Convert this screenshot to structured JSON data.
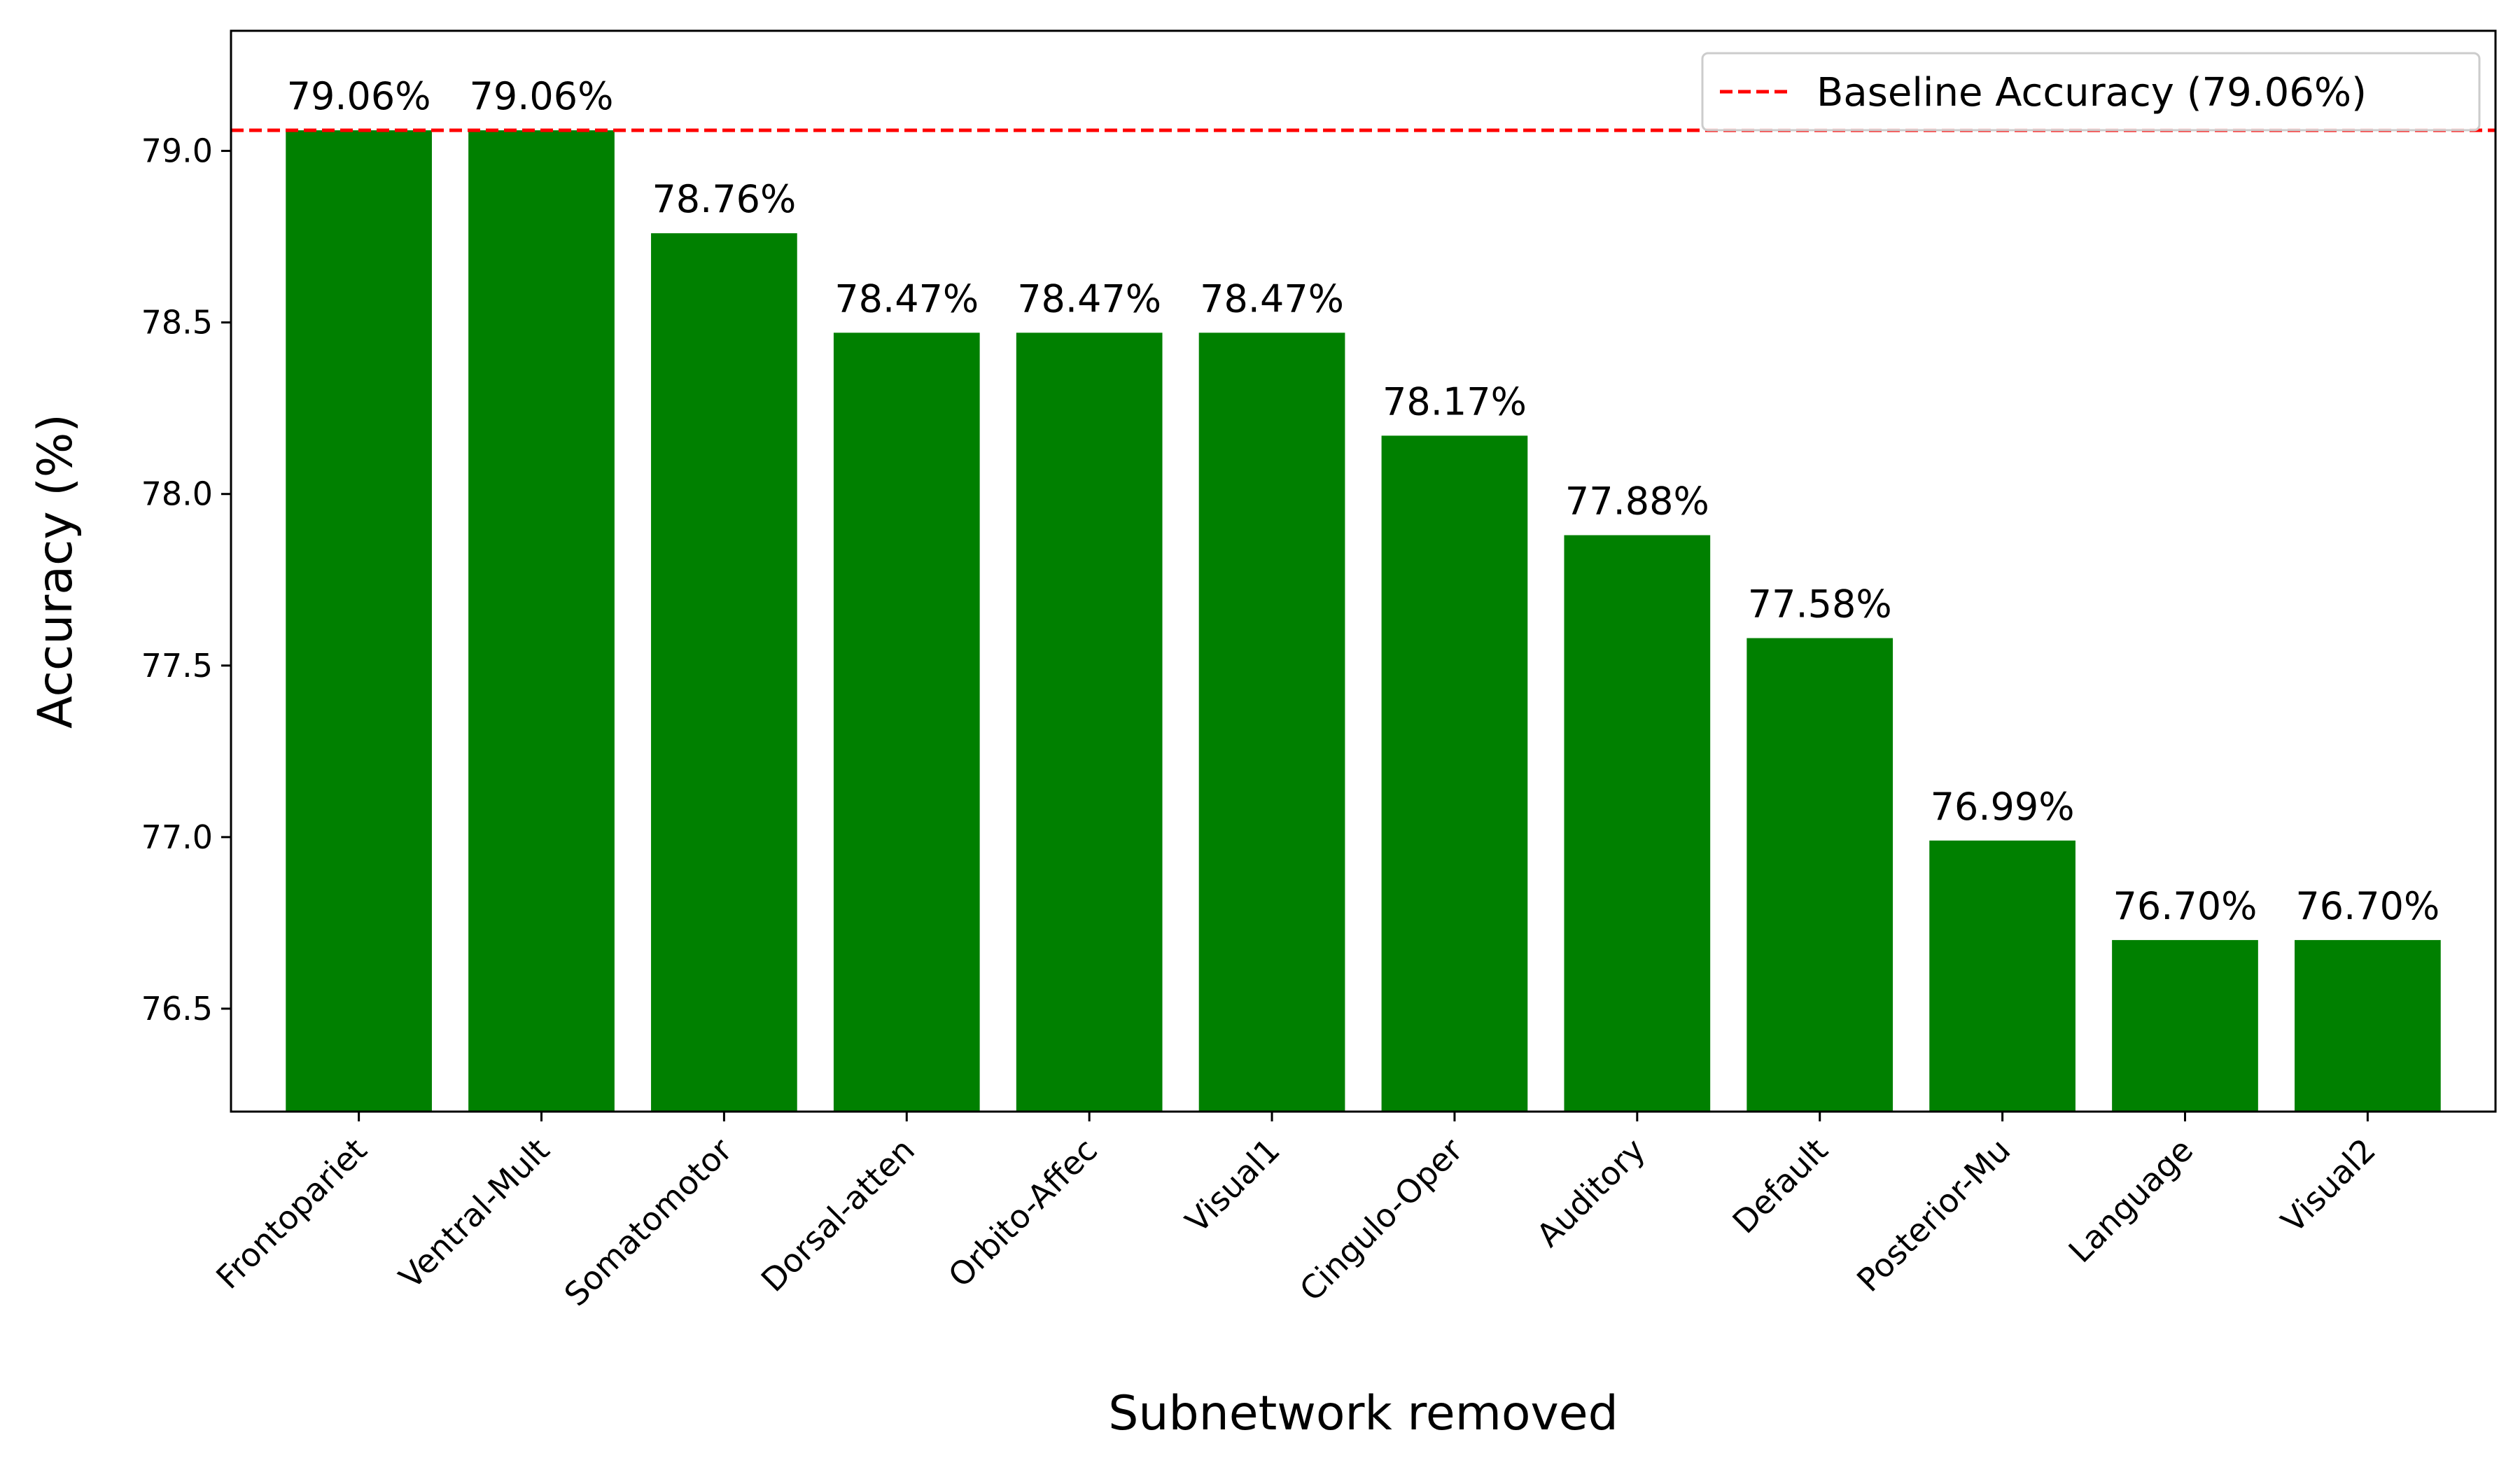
{
  "chart_data": {
    "type": "bar",
    "xlabel": "Subnetwork removed",
    "ylabel": "Accuracy (%)",
    "ylim": [
      76.2,
      79.35
    ],
    "yticks": [
      76.5,
      77.0,
      77.5,
      78.0,
      78.5,
      79.0
    ],
    "ytick_labels": [
      "76.5",
      "77.0",
      "77.5",
      "78.0",
      "78.5",
      "79.0"
    ],
    "categories": [
      "Frontopariet",
      "Ventral-Mult",
      "Somatomotor",
      "Dorsal-atten",
      "Orbito-Affec",
      "Visual1",
      "Cingulo-Oper",
      "Auditory",
      "Default",
      "Posterior-Mu",
      "Language",
      "Visual2"
    ],
    "values": [
      79.06,
      79.06,
      78.76,
      78.47,
      78.47,
      78.47,
      78.17,
      77.88,
      77.58,
      76.99,
      76.7,
      76.7
    ],
    "value_labels": [
      "79.06%",
      "79.06%",
      "78.76%",
      "78.47%",
      "78.47%",
      "78.47%",
      "78.17%",
      "77.88%",
      "77.58%",
      "76.99%",
      "76.70%",
      "76.70%"
    ],
    "bar_color": "#008000",
    "reference_line": {
      "value": 79.06,
      "label": "Baseline Accuracy (79.06%)",
      "color": "#ff0000",
      "style": "dashed"
    },
    "legend_position": "top-right",
    "grid": false
  }
}
